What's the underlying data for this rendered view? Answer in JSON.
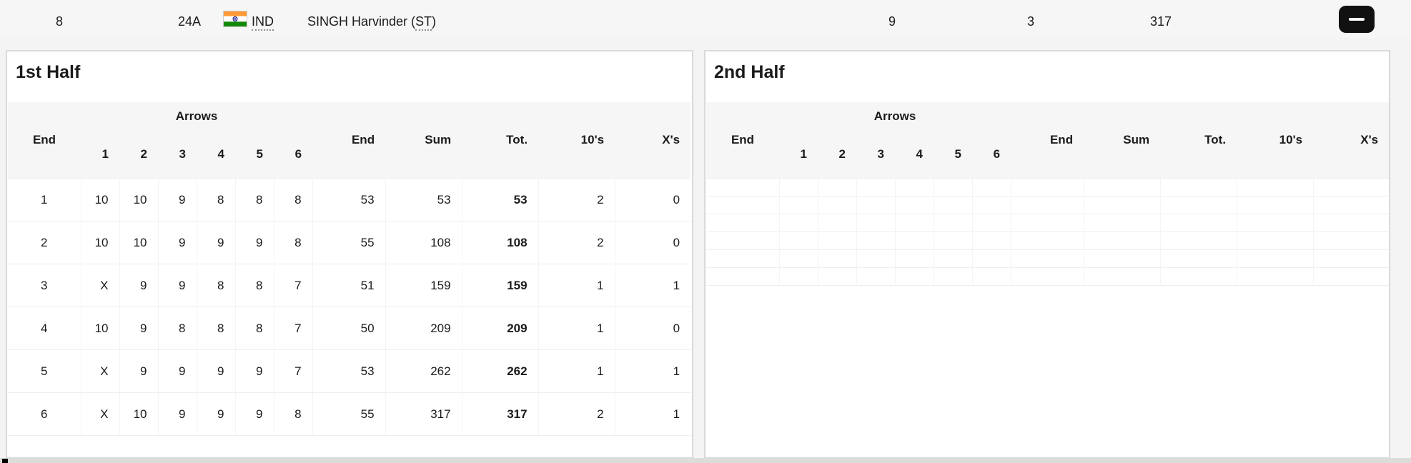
{
  "top_bar": {
    "rank": "8",
    "target": "24A",
    "country_code": "IND",
    "athlete_name_prefix": "SINGH Harvinder (",
    "athlete_class": "ST",
    "athlete_name_suffix": ")",
    "tens_total": "9",
    "xs_total": "3",
    "score_total": "317"
  },
  "icons": {
    "remove": "minus-icon",
    "flag": "india-flag-icon"
  },
  "colors": {
    "flag_saffron": "#FF9933",
    "flag_white": "#FFFFFF",
    "flag_green": "#138808",
    "flag_navy": "#000080",
    "button_bg": "#111111",
    "panel_border": "#d9d9d9",
    "thead_bg": "#f6f6f6"
  },
  "panels": [
    {
      "title": "1st Half",
      "headers": {
        "end": "End",
        "arrows": "Arrows",
        "arrow_numbers": [
          "1",
          "2",
          "3",
          "4",
          "5",
          "6"
        ],
        "end2": "End",
        "sum": "Sum",
        "tot": "Tot.",
        "tens": "10's",
        "xs": "X's"
      },
      "rows": [
        {
          "end": "1",
          "arrows": [
            "10",
            "10",
            "9",
            "8",
            "8",
            "8"
          ],
          "end_score": "53",
          "sum": "53",
          "tot": "53",
          "tens": "2",
          "xs": "0"
        },
        {
          "end": "2",
          "arrows": [
            "10",
            "10",
            "9",
            "9",
            "9",
            "8"
          ],
          "end_score": "55",
          "sum": "108",
          "tot": "108",
          "tens": "2",
          "xs": "0"
        },
        {
          "end": "3",
          "arrows": [
            "X",
            "9",
            "9",
            "8",
            "8",
            "7"
          ],
          "end_score": "51",
          "sum": "159",
          "tot": "159",
          "tens": "1",
          "xs": "1"
        },
        {
          "end": "4",
          "arrows": [
            "10",
            "9",
            "8",
            "8",
            "8",
            "7"
          ],
          "end_score": "50",
          "sum": "209",
          "tot": "209",
          "tens": "1",
          "xs": "0"
        },
        {
          "end": "5",
          "arrows": [
            "X",
            "9",
            "9",
            "9",
            "9",
            "7"
          ],
          "end_score": "53",
          "sum": "262",
          "tot": "262",
          "tens": "1",
          "xs": "1"
        },
        {
          "end": "6",
          "arrows": [
            "X",
            "10",
            "9",
            "9",
            "9",
            "8"
          ],
          "end_score": "55",
          "sum": "317",
          "tot": "317",
          "tens": "2",
          "xs": "1"
        }
      ]
    },
    {
      "title": "2nd Half",
      "headers": {
        "end": "End",
        "arrows": "Arrows",
        "arrow_numbers": [
          "1",
          "2",
          "3",
          "4",
          "5",
          "6"
        ],
        "end2": "End",
        "sum": "Sum",
        "tot": "Tot.",
        "tens": "10's",
        "xs": "X's"
      },
      "rows": [
        {
          "end": "",
          "arrows": [
            "",
            "",
            "",
            "",
            "",
            ""
          ],
          "end_score": "",
          "sum": "",
          "tot": "",
          "tens": "",
          "xs": ""
        },
        {
          "end": "",
          "arrows": [
            "",
            "",
            "",
            "",
            "",
            ""
          ],
          "end_score": "",
          "sum": "",
          "tot": "",
          "tens": "",
          "xs": ""
        },
        {
          "end": "",
          "arrows": [
            "",
            "",
            "",
            "",
            "",
            ""
          ],
          "end_score": "",
          "sum": "",
          "tot": "",
          "tens": "",
          "xs": ""
        },
        {
          "end": "",
          "arrows": [
            "",
            "",
            "",
            "",
            "",
            ""
          ],
          "end_score": "",
          "sum": "",
          "tot": "",
          "tens": "",
          "xs": ""
        },
        {
          "end": "",
          "arrows": [
            "",
            "",
            "",
            "",
            "",
            ""
          ],
          "end_score": "",
          "sum": "",
          "tot": "",
          "tens": "",
          "xs": ""
        },
        {
          "end": "",
          "arrows": [
            "",
            "",
            "",
            "",
            "",
            ""
          ],
          "end_score": "",
          "sum": "",
          "tot": "",
          "tens": "",
          "xs": ""
        }
      ]
    }
  ]
}
